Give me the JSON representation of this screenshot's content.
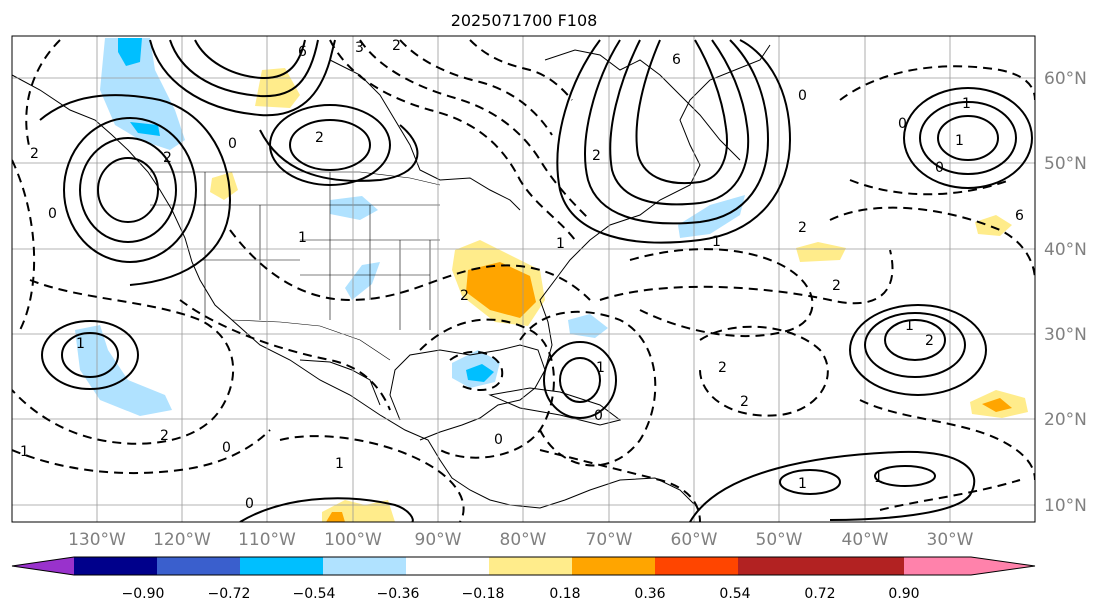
{
  "title": "2025071700 F108",
  "longitude_ticks": [
    "130°W",
    "120°W",
    "110°W",
    "100°W",
    "90°W",
    "80°W",
    "70°W",
    "60°W",
    "50°W",
    "40°W",
    "30°W"
  ],
  "latitude_ticks": [
    "60°N",
    "50°N",
    "40°N",
    "30°N",
    "20°N",
    "10°N"
  ],
  "contour_labels": [
    "6",
    "3",
    "2",
    "0",
    "2",
    "6",
    "0",
    "1",
    "1",
    "2",
    "0",
    "2",
    "1",
    "2",
    "2",
    "1",
    "0",
    "0",
    "2",
    "1",
    "2",
    "1",
    "0",
    "1",
    "2",
    "2",
    "1",
    "0",
    "1",
    "0",
    "1",
    "1",
    "2",
    "1",
    "2",
    "6",
    "0"
  ],
  "colorbar": {
    "labels": [
      "−0.90",
      "−0.72",
      "−0.54",
      "−0.36",
      "−0.18",
      "0.18",
      "0.36",
      "0.54",
      "0.72",
      "0.90"
    ],
    "colors": [
      "#9932cc",
      "#00008b",
      "#3a5fcd",
      "#00bfff",
      "#b0e2ff",
      "#ffffff",
      "#ffec8b",
      "#ffa500",
      "#ff4500",
      "#b22222",
      "#ff82ab"
    ]
  }
}
